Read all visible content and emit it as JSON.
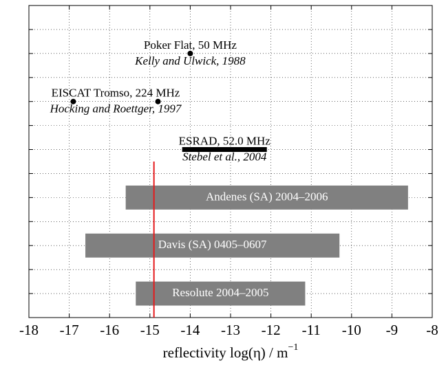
{
  "chart_data": {
    "type": "range",
    "xlim": [
      -18,
      -8
    ],
    "xticks": [
      -18,
      -17,
      -16,
      -15,
      -14,
      -13,
      -12,
      -11,
      -10,
      -9,
      -8
    ],
    "ylim": [
      0,
      13
    ],
    "yticks": [
      1,
      2,
      3,
      4,
      5,
      6,
      7,
      8,
      9,
      10,
      11,
      12
    ],
    "grid": true,
    "xlabel": "reflectivity log(η) / m",
    "xlabel_exponent": "−1",
    "experiments": [
      {
        "name": "Poker Flat, 50 MHz",
        "reference": "Kelly and Ulwick, 1988",
        "style": "points",
        "x": [
          -14
        ],
        "y": 11,
        "color": "#000000"
      },
      {
        "name": "EISCAT Tromso, 224 MHz",
        "reference": "Hocking and Roettger, 1997",
        "style": "points",
        "x": [
          -16.9,
          -14.8
        ],
        "y": 9,
        "color": "#000000"
      },
      {
        "name": "ESRAD, 52.0 MHz",
        "reference": "Stebel et al., 2004",
        "style": "segment",
        "x": [
          -14.2,
          -12.1
        ],
        "y": 7,
        "color": "#000000"
      }
    ],
    "bars": [
      {
        "name": "Andenes (SA) 2004–2006",
        "start": -15.6,
        "end": -8.6,
        "y": 5,
        "color": "#808080"
      },
      {
        "name": "Davis (SA) 0405–0607",
        "start": -16.6,
        "end": -10.3,
        "y": 3,
        "color": "#808080"
      },
      {
        "name": "Resolute 2004–2005",
        "start": -15.35,
        "end": -11.15,
        "y": 1,
        "color": "#808080"
      }
    ],
    "reference_line": {
      "x": -14.9,
      "color": "#e41a1c"
    }
  }
}
